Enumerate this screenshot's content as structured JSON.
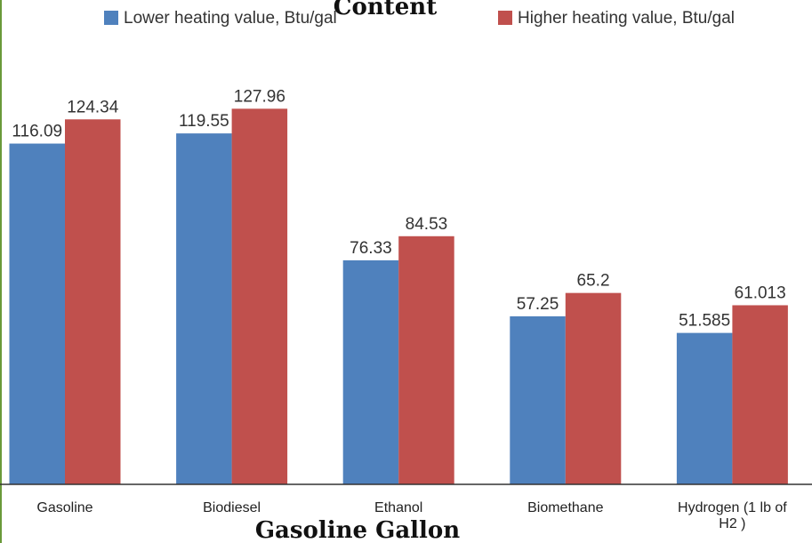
{
  "chart_data": {
    "type": "bar",
    "title": "Content",
    "subtitle": "Gasoline Gallon",
    "categories": [
      "Gasoline",
      "Biodiesel",
      "Ethanol",
      "Biomethane",
      "Hydrogen (1 lb of H2 )"
    ],
    "series": [
      {
        "name": "Lower heating value, Btu/gal",
        "color": "#4f81bd",
        "values": [
          116.09,
          119.55,
          76.33,
          57.25,
          51.585
        ]
      },
      {
        "name": "Higher heating value, Btu/gal",
        "color": "#c0504d",
        "values": [
          124.34,
          127.96,
          84.53,
          65.2,
          61.013
        ]
      }
    ],
    "ylim": [
      0,
      165
    ]
  }
}
